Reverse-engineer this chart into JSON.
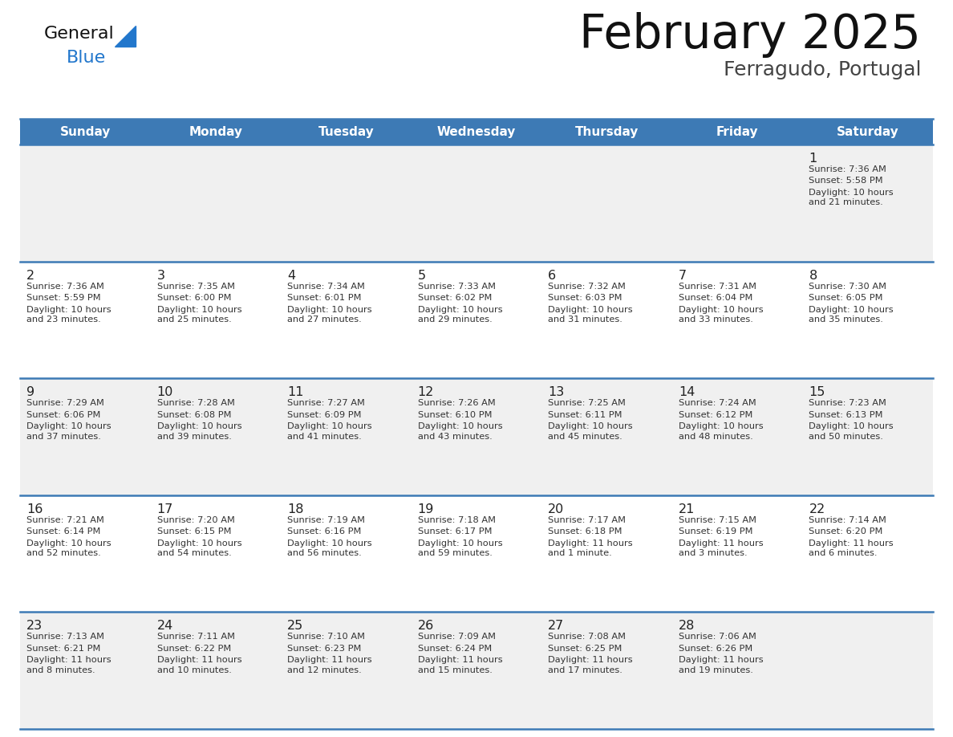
{
  "title": "February 2025",
  "subtitle": "Ferragudo, Portugal",
  "header_bg_color": "#3d7ab5",
  "header_text_color": "#ffffff",
  "day_names": [
    "Sunday",
    "Monday",
    "Tuesday",
    "Wednesday",
    "Thursday",
    "Friday",
    "Saturday"
  ],
  "row_bg_even": "#f0f0f0",
  "row_bg_odd": "#ffffff",
  "grid_line_color": "#3d7ab5",
  "day_num_color": "#222222",
  "cell_text_color": "#333333",
  "title_color": "#111111",
  "subtitle_color": "#444444",
  "logo_general_color": "#111111",
  "logo_blue_color": "#2277cc",
  "logo_triangle_color": "#2277cc",
  "cells": [
    [
      null,
      null,
      null,
      null,
      null,
      null,
      {
        "day": 1,
        "sunrise": "7:36 AM",
        "sunset": "5:58 PM",
        "daylight": "10 hours\nand 21 minutes."
      }
    ],
    [
      {
        "day": 2,
        "sunrise": "7:36 AM",
        "sunset": "5:59 PM",
        "daylight": "10 hours\nand 23 minutes."
      },
      {
        "day": 3,
        "sunrise": "7:35 AM",
        "sunset": "6:00 PM",
        "daylight": "10 hours\nand 25 minutes."
      },
      {
        "day": 4,
        "sunrise": "7:34 AM",
        "sunset": "6:01 PM",
        "daylight": "10 hours\nand 27 minutes."
      },
      {
        "day": 5,
        "sunrise": "7:33 AM",
        "sunset": "6:02 PM",
        "daylight": "10 hours\nand 29 minutes."
      },
      {
        "day": 6,
        "sunrise": "7:32 AM",
        "sunset": "6:03 PM",
        "daylight": "10 hours\nand 31 minutes."
      },
      {
        "day": 7,
        "sunrise": "7:31 AM",
        "sunset": "6:04 PM",
        "daylight": "10 hours\nand 33 minutes."
      },
      {
        "day": 8,
        "sunrise": "7:30 AM",
        "sunset": "6:05 PM",
        "daylight": "10 hours\nand 35 minutes."
      }
    ],
    [
      {
        "day": 9,
        "sunrise": "7:29 AM",
        "sunset": "6:06 PM",
        "daylight": "10 hours\nand 37 minutes."
      },
      {
        "day": 10,
        "sunrise": "7:28 AM",
        "sunset": "6:08 PM",
        "daylight": "10 hours\nand 39 minutes."
      },
      {
        "day": 11,
        "sunrise": "7:27 AM",
        "sunset": "6:09 PM",
        "daylight": "10 hours\nand 41 minutes."
      },
      {
        "day": 12,
        "sunrise": "7:26 AM",
        "sunset": "6:10 PM",
        "daylight": "10 hours\nand 43 minutes."
      },
      {
        "day": 13,
        "sunrise": "7:25 AM",
        "sunset": "6:11 PM",
        "daylight": "10 hours\nand 45 minutes."
      },
      {
        "day": 14,
        "sunrise": "7:24 AM",
        "sunset": "6:12 PM",
        "daylight": "10 hours\nand 48 minutes."
      },
      {
        "day": 15,
        "sunrise": "7:23 AM",
        "sunset": "6:13 PM",
        "daylight": "10 hours\nand 50 minutes."
      }
    ],
    [
      {
        "day": 16,
        "sunrise": "7:21 AM",
        "sunset": "6:14 PM",
        "daylight": "10 hours\nand 52 minutes."
      },
      {
        "day": 17,
        "sunrise": "7:20 AM",
        "sunset": "6:15 PM",
        "daylight": "10 hours\nand 54 minutes."
      },
      {
        "day": 18,
        "sunrise": "7:19 AM",
        "sunset": "6:16 PM",
        "daylight": "10 hours\nand 56 minutes."
      },
      {
        "day": 19,
        "sunrise": "7:18 AM",
        "sunset": "6:17 PM",
        "daylight": "10 hours\nand 59 minutes."
      },
      {
        "day": 20,
        "sunrise": "7:17 AM",
        "sunset": "6:18 PM",
        "daylight": "11 hours\nand 1 minute."
      },
      {
        "day": 21,
        "sunrise": "7:15 AM",
        "sunset": "6:19 PM",
        "daylight": "11 hours\nand 3 minutes."
      },
      {
        "day": 22,
        "sunrise": "7:14 AM",
        "sunset": "6:20 PM",
        "daylight": "11 hours\nand 6 minutes."
      }
    ],
    [
      {
        "day": 23,
        "sunrise": "7:13 AM",
        "sunset": "6:21 PM",
        "daylight": "11 hours\nand 8 minutes."
      },
      {
        "day": 24,
        "sunrise": "7:11 AM",
        "sunset": "6:22 PM",
        "daylight": "11 hours\nand 10 minutes."
      },
      {
        "day": 25,
        "sunrise": "7:10 AM",
        "sunset": "6:23 PM",
        "daylight": "11 hours\nand 12 minutes."
      },
      {
        "day": 26,
        "sunrise": "7:09 AM",
        "sunset": "6:24 PM",
        "daylight": "11 hours\nand 15 minutes."
      },
      {
        "day": 27,
        "sunrise": "7:08 AM",
        "sunset": "6:25 PM",
        "daylight": "11 hours\nand 17 minutes."
      },
      {
        "day": 28,
        "sunrise": "7:06 AM",
        "sunset": "6:26 PM",
        "daylight": "11 hours\nand 19 minutes."
      },
      null
    ]
  ]
}
